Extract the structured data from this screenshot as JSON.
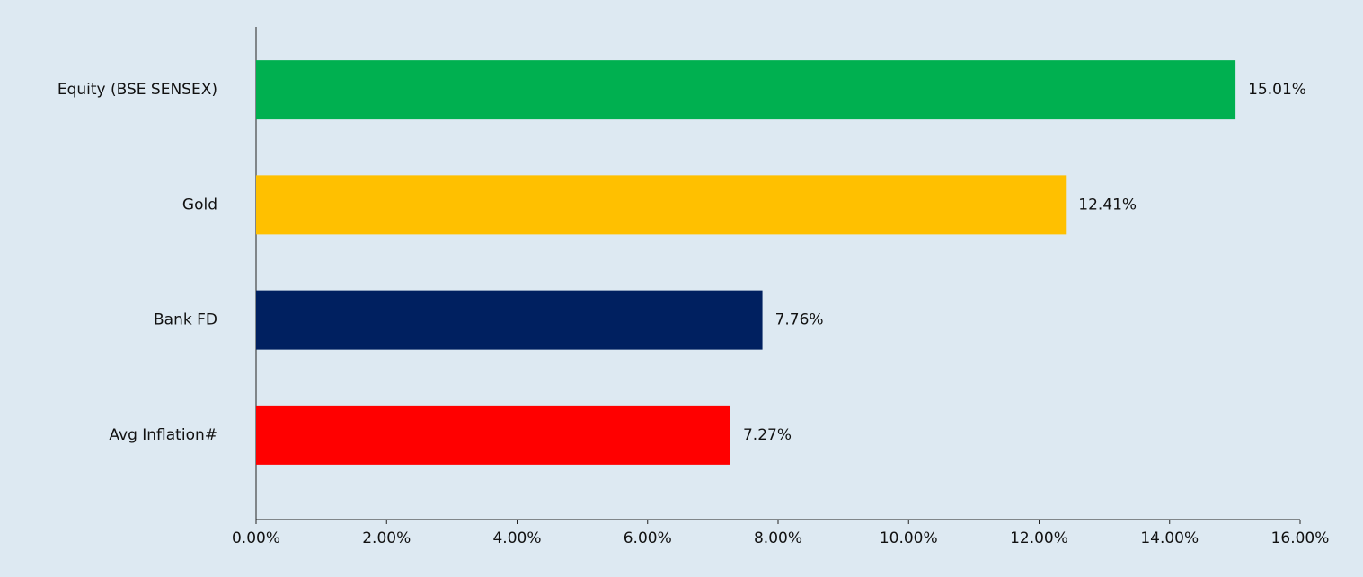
{
  "chart_data": {
    "type": "hbar",
    "categories": [
      "Equity (BSE SENSEX)",
      "Gold",
      "Bank FD",
      "Avg Inflation#"
    ],
    "values": [
      15.01,
      12.41,
      7.76,
      7.27
    ],
    "value_labels": [
      "15.01%",
      "12.41%",
      "7.76%",
      "7.27%"
    ],
    "colors": [
      "#00b050",
      "#ffc000",
      "#002060",
      "#ff0000"
    ],
    "xlim": [
      0,
      16
    ],
    "xticks": [
      {
        "value": 0,
        "label": "0.00%"
      },
      {
        "value": 2,
        "label": "2.00%"
      },
      {
        "value": 4,
        "label": "4.00%"
      },
      {
        "value": 6,
        "label": "6.00%"
      },
      {
        "value": 8,
        "label": "8.00%"
      },
      {
        "value": 10,
        "label": "10.00%"
      },
      {
        "value": 12,
        "label": "12.00%"
      },
      {
        "value": 14,
        "label": "14.00%"
      },
      {
        "value": 16,
        "label": "16.00%"
      }
    ]
  }
}
